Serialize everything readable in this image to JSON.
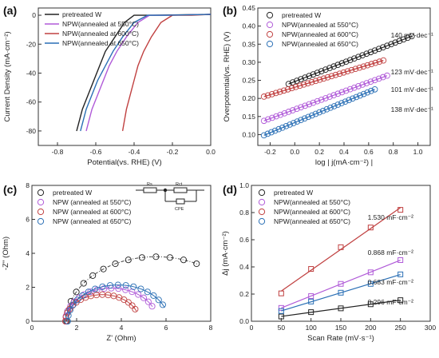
{
  "chart_data": [
    {
      "type": "line",
      "panel_label": "(a)",
      "xlabel": "Potential(vs. RHE) (V)",
      "ylabel": "Current Density (mA·cm⁻²)",
      "xlim": [
        -0.9,
        0.0
      ],
      "ylim": [
        -90,
        5
      ],
      "xticks": [
        -0.8,
        -0.6,
        -0.4,
        -0.2,
        0.0
      ],
      "xtick_labels": [
        "-0.8",
        "-0.6",
        "-0.4",
        "-0.2",
        "0.0"
      ],
      "yticks": [
        0,
        -20,
        -40,
        -60,
        -80
      ],
      "ytick_labels": [
        "0",
        "-20",
        "-40",
        "-60",
        "-80"
      ],
      "legend_position": "top-left",
      "series": [
        {
          "name": "pretreated W",
          "color": "#222222",
          "onset": -0.4,
          "x": [
            -0.4,
            -0.45,
            -0.5,
            -0.55,
            -0.58,
            -0.61,
            -0.64,
            -0.67,
            -0.7
          ]
        },
        {
          "name": "NPW(annealed at 550°C)",
          "color": "#b05ad8",
          "onset": -0.32,
          "x": [
            -0.32,
            -0.38,
            -0.44,
            -0.49,
            -0.53,
            -0.56,
            -0.59,
            -0.62,
            -0.65
          ]
        },
        {
          "name": "NPW(annealed at 600°C)",
          "color": "#c04040",
          "onset": -0.2,
          "x": [
            -0.2,
            -0.26,
            -0.31,
            -0.35,
            -0.38,
            -0.4,
            -0.42,
            -0.44,
            -0.46
          ]
        },
        {
          "name": "NPW(annealed at 650°C)",
          "color": "#2a6fb5",
          "onset": -0.33,
          "x": [
            -0.33,
            -0.4,
            -0.46,
            -0.51,
            -0.55,
            -0.59,
            -0.62,
            -0.65,
            -0.68
          ]
        }
      ],
      "y_common": [
        0,
        -5,
        -15,
        -25,
        -35,
        -45,
        -55,
        -65,
        -80
      ]
    },
    {
      "type": "scatter",
      "panel_label": "(b)",
      "xlabel": "log | j(mA·cm⁻²) |",
      "ylabel": "Overpotential(vs. RHE) (V)",
      "xlim": [
        -0.3,
        1.1
      ],
      "ylim": [
        0.07,
        0.45
      ],
      "xticks": [
        -0.2,
        0.0,
        0.2,
        0.4,
        0.6,
        0.8,
        1.0
      ],
      "xtick_labels": [
        "-0.2",
        "0.0",
        "0.2",
        "0.4",
        "0.6",
        "0.8",
        "1.0"
      ],
      "yticks": [
        0.1,
        0.15,
        0.2,
        0.25,
        0.3,
        0.35,
        0.4,
        0.45
      ],
      "ytick_labels": [
        "0.10",
        "0.15",
        "0.20",
        "0.25",
        "0.30",
        "0.35",
        "0.40",
        "0.45"
      ],
      "legend_position": "top-left",
      "series": [
        {
          "name": "pretreated W",
          "color": "#222222",
          "x_range": [
            -0.05,
            0.95
          ],
          "y_range": [
            0.24,
            0.372
          ],
          "label": "140 mV·dec⁻¹"
        },
        {
          "name": "NPW(annealed at 550°C)",
          "color": "#b05ad8",
          "x_range": [
            -0.25,
            0.75
          ],
          "y_range": [
            0.138,
            0.263
          ],
          "label": "123 mV·dec⁻¹"
        },
        {
          "name": "NPW(annealed at 600°C)",
          "color": "#c04040",
          "x_range": [
            -0.25,
            0.72
          ],
          "y_range": [
            0.205,
            0.305
          ],
          "label": "101 mV·dec⁻¹"
        },
        {
          "name": "NPW(annealed at 650°C)",
          "color": "#2a6fb5",
          "x_range": [
            -0.25,
            0.65
          ],
          "y_range": [
            0.098,
            0.225
          ],
          "label": "138 mV·dec⁻¹"
        }
      ]
    },
    {
      "type": "scatter",
      "panel_label": "(c)",
      "xlabel": "Z' (Ohm)",
      "ylabel": "-Z'' (Ohm)",
      "xlim": [
        0,
        8
      ],
      "ylim": [
        0,
        8
      ],
      "xticks": [
        0,
        2,
        4,
        6,
        8
      ],
      "xtick_labels": [
        "0",
        "2",
        "4",
        "6",
        "8"
      ],
      "yticks": [
        0,
        2,
        4,
        6,
        8
      ],
      "ytick_labels": [
        "0",
        "2",
        "4",
        "6",
        "8"
      ],
      "legend_position": "top-left",
      "circuit_labels": [
        "Rs",
        "Rct",
        "CPE"
      ],
      "series": [
        {
          "name": "pretreated W",
          "color": "#222222",
          "rs": 1.55,
          "rct": 8.0,
          "max_x": 7.5
        },
        {
          "name": "NPW (annealed at 550°C)",
          "color": "#b05ad8",
          "rs": 1.5,
          "rct": 4.1,
          "max_x": 5.4
        },
        {
          "name": "NPW (annealed at 600°C)",
          "color": "#c04040",
          "rs": 1.5,
          "rct": 3.3,
          "max_x": 4.7
        },
        {
          "name": "NPW (annealed at 650°C)",
          "color": "#2a6fb5",
          "rs": 1.6,
          "rct": 4.5,
          "max_x": 5.95
        }
      ]
    },
    {
      "type": "scatter",
      "panel_label": "(d)",
      "xlabel": "Scan Rate (mV·s⁻¹)",
      "ylabel": "Δj (mA·cm⁻²)",
      "xlim": [
        0,
        300
      ],
      "ylim": [
        0,
        1.0
      ],
      "xticks": [
        0,
        50,
        100,
        150,
        200,
        250,
        300
      ],
      "xtick_labels": [
        "0",
        "50",
        "100",
        "150",
        "200",
        "250",
        "300"
      ],
      "yticks": [
        0.0,
        0.2,
        0.4,
        0.6,
        0.8,
        1.0
      ],
      "ytick_labels": [
        "0.0",
        "0.2",
        "0.4",
        "0.6",
        "0.8",
        "1.0"
      ],
      "legend_position": "top-left",
      "categories": [
        50,
        100,
        150,
        200,
        250
      ],
      "series": [
        {
          "name": "pretreated W",
          "color": "#222222",
          "values": [
            0.035,
            0.067,
            0.095,
            0.125,
            0.155
          ],
          "label": "0.296 mF·cm⁻²"
        },
        {
          "name": "NPW(annealed at 550°C)",
          "color": "#b05ad8",
          "values": [
            0.098,
            0.185,
            0.275,
            0.36,
            0.45
          ],
          "label": "0.868 mF·cm⁻²"
        },
        {
          "name": "NPW(annealed at 600°C)",
          "color": "#c04040",
          "values": [
            0.205,
            0.385,
            0.545,
            0.69,
            0.82
          ],
          "label": "1.530 mF·cm⁻²"
        },
        {
          "name": "NPW(annealed at 650°C)",
          "color": "#2a6fb5",
          "values": [
            0.075,
            0.145,
            0.21,
            0.275,
            0.345
          ],
          "label": "0.683 mF·cm⁻²"
        }
      ]
    }
  ]
}
